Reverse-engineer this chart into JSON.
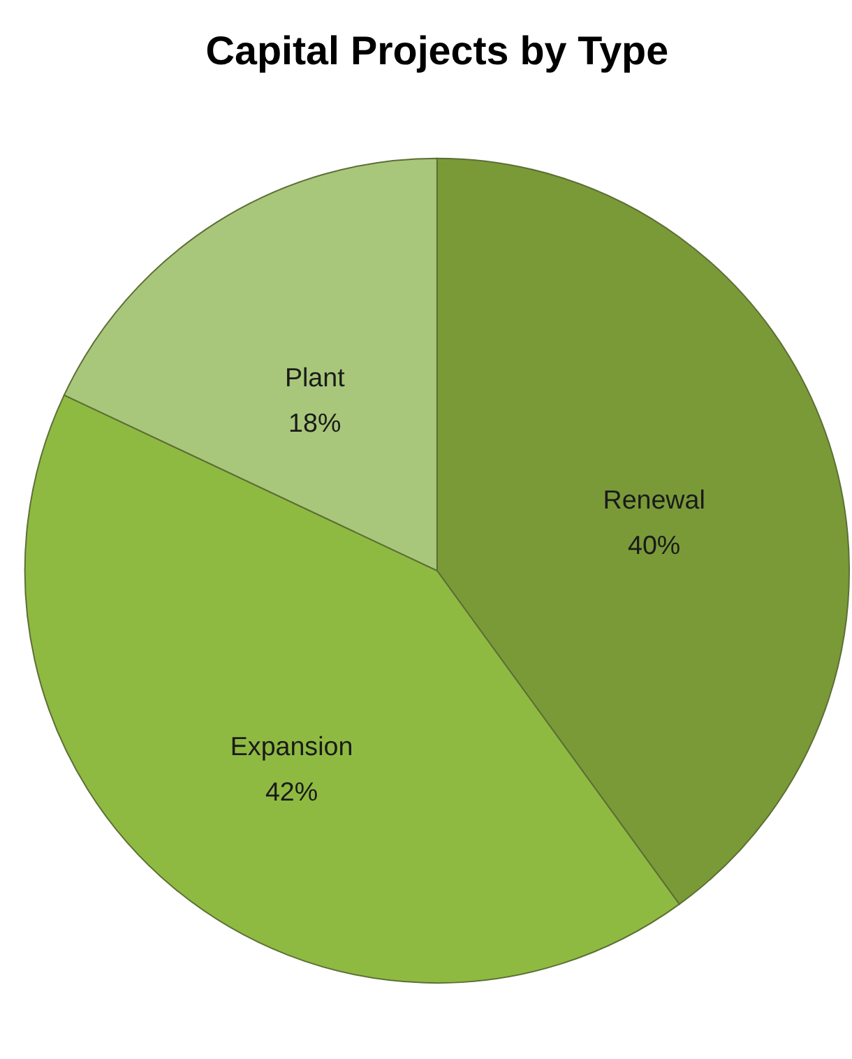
{
  "chart_data": {
    "type": "pie",
    "title": "Capital Projects by Type",
    "categories": [
      "Renewal",
      "Expansion",
      "Plant"
    ],
    "values": [
      40,
      42,
      18
    ],
    "colors": [
      "#7a9a38",
      "#8fba42",
      "#a8c77a"
    ],
    "value_labels": [
      "40%",
      "42%",
      "18%"
    ]
  }
}
